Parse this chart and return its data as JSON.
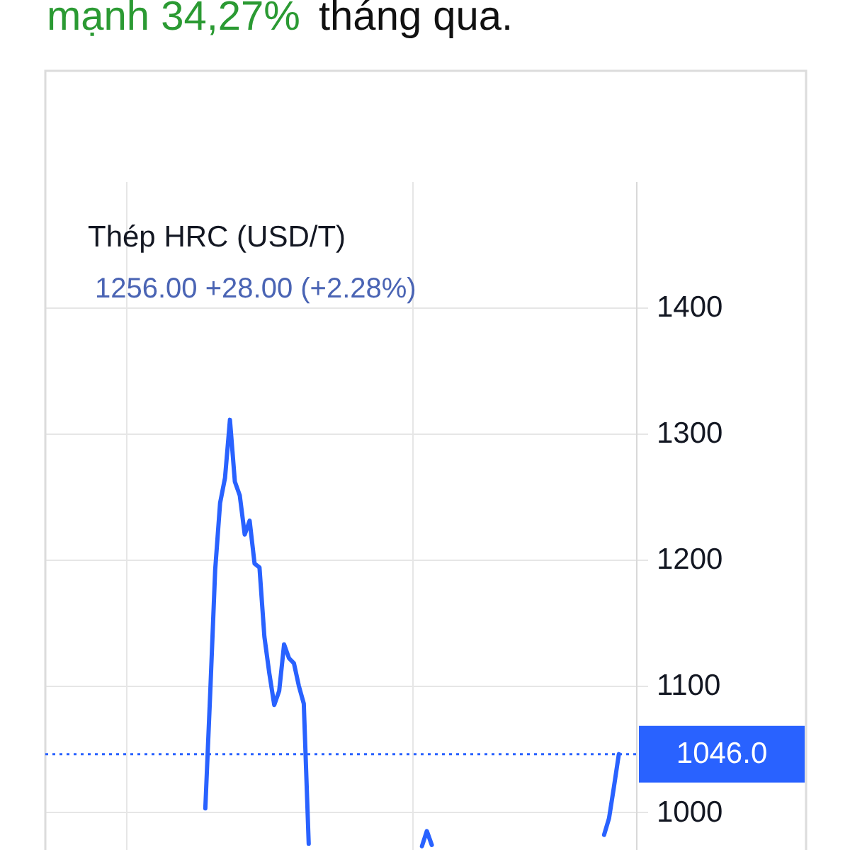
{
  "chart_data": {
    "type": "line",
    "title": "Thép HRC (USD/T)",
    "annotations": [
      "mạnh 34,27%",
      "tháng qua.",
      "1256.00 +28.00 (+2.28%)"
    ],
    "categories": [
      null,
      null,
      null,
      null,
      null,
      null,
      null,
      null,
      null,
      null,
      null,
      null,
      null,
      null,
      null,
      null,
      null,
      null,
      null,
      null,
      null,
      null,
      null,
      null,
      null,
      null,
      null,
      null,
      null,
      null,
      null,
      null,
      null,
      null,
      null,
      null,
      null,
      null,
      null,
      null,
      null,
      null,
      null,
      null,
      null,
      null,
      null,
      null,
      null,
      null,
      null,
      null,
      null,
      null,
      null,
      null,
      null,
      null,
      null,
      null,
      null,
      null,
      null,
      null,
      null,
      null,
      null,
      null,
      null,
      null,
      null,
      null,
      null,
      null,
      null,
      null,
      null,
      null,
      null,
      null,
      null,
      null,
      null,
      null,
      null,
      null,
      null,
      null,
      null,
      null,
      null,
      null,
      null,
      null,
      null,
      null,
      null,
      null,
      null,
      null,
      null,
      null,
      null,
      null,
      null,
      null,
      null,
      null,
      null,
      null,
      null,
      null,
      null,
      null,
      null,
      null,
      null,
      null,
      null,
      null
    ],
    "series": [
      {
        "color": "#2962ff",
        "values": [
          null,
          null,
          null,
          null,
          null,
          null,
          null,
          null,
          null,
          null,
          null,
          null,
          null,
          null,
          null,
          null,
          null,
          null,
          null,
          null,
          null,
          null,
          null,
          null,
          null,
          null,
          null,
          null,
          null,
          null,
          null,
          null,
          1003,
          1095,
          1192,
          1245,
          1265,
          1311,
          1262,
          1251,
          1220,
          1231,
          1197,
          1194,
          1139,
          1110,
          1085,
          1096,
          1133,
          1122,
          1118,
          1100,
          1086,
          975,
          null,
          null,
          null,
          null,
          null,
          null,
          null,
          null,
          null,
          null,
          null,
          null,
          null,
          null,
          null,
          null,
          null,
          null,
          null,
          null,
          null,
          null,
          973,
          985,
          974,
          null,
          null,
          null,
          null,
          null,
          null,
          null,
          null,
          null,
          null,
          null,
          null,
          null,
          null,
          null,
          null,
          null,
          null,
          null,
          null,
          null,
          null,
          null,
          null,
          null,
          null,
          null,
          null,
          null,
          null,
          null,
          null,
          null,
          null,
          982,
          995,
          1020,
          1046,
          null,
          null,
          null
        ]
      }
    ],
    "ylim": [
      970,
      1500
    ],
    "yticks": [
      1000,
      1100,
      1200,
      1300,
      1400
    ],
    "grid": true,
    "tick_labels": "y",
    "line_style": "solid",
    "ref_lines": [
      {
        "axis": "y",
        "value": 1046,
        "label": "1046.0",
        "color": "#2962ff",
        "line_style": "dotted"
      }
    ]
  }
}
